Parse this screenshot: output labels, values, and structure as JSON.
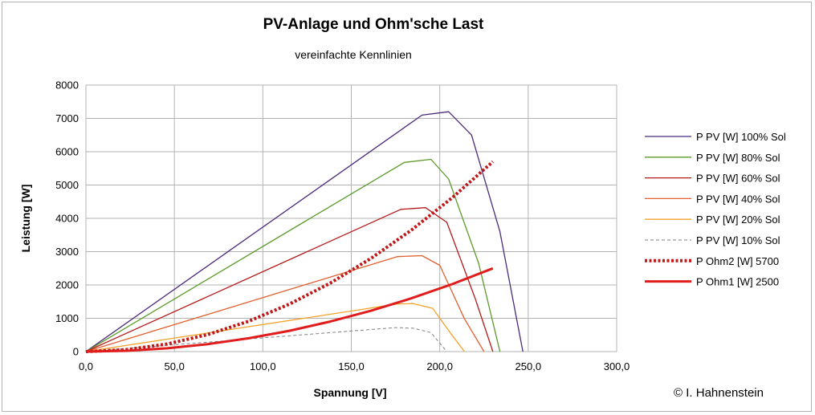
{
  "chart_data": {
    "type": "line",
    "title": "PV-Anlage  und  Ohm'sche Last",
    "subtitle": "vereinfachte Kennlinien",
    "xlabel": "Spannung [V]",
    "ylabel": "Leistung [W]",
    "xlim": [
      0,
      300
    ],
    "ylim": [
      0,
      8000
    ],
    "x_ticks": [
      "0,0",
      "50,0",
      "100,0",
      "150,0",
      "200,0",
      "250,0",
      "300,0"
    ],
    "y_ticks": [
      "0",
      "1000",
      "2000",
      "3000",
      "4000",
      "5000",
      "6000",
      "7000",
      "8000"
    ],
    "grid": true,
    "legend_position": "right",
    "copyright": "©  I. Hahnenstein",
    "series": [
      {
        "name": "P PV [W] 100% Sol",
        "color": "#4b2a7a",
        "style": "solid",
        "width": 1.3,
        "x": [
          0,
          190,
          205,
          218,
          234,
          247
        ],
        "y": [
          0,
          7100,
          7200,
          6500,
          3600,
          0
        ]
      },
      {
        "name": "P PV [W] 80% Sol",
        "color": "#5a9a2a",
        "style": "solid",
        "width": 1.3,
        "x": [
          0,
          180,
          195,
          205,
          222,
          234
        ],
        "y": [
          0,
          5680,
          5770,
          5180,
          2650,
          0
        ]
      },
      {
        "name": "P PV [W] 60% Sol",
        "color": "#b51a1a",
        "style": "solid",
        "width": 1.3,
        "x": [
          0,
          178,
          192,
          204,
          220,
          230
        ],
        "y": [
          0,
          4270,
          4320,
          3880,
          1600,
          0
        ]
      },
      {
        "name": "P PV [W] 40% Sol",
        "color": "#e06030",
        "style": "solid",
        "width": 1.3,
        "x": [
          0,
          176,
          190,
          200,
          214,
          225
        ],
        "y": [
          0,
          2850,
          2880,
          2590,
          980,
          0
        ]
      },
      {
        "name": "P PV [W] 20% Sol",
        "color": "#f2a22c",
        "style": "solid",
        "width": 1.3,
        "x": [
          0,
          176,
          185,
          196,
          206,
          214
        ],
        "y": [
          0,
          1430,
          1440,
          1300,
          560,
          0
        ]
      },
      {
        "name": "P PV [W] 10% Sol",
        "color": "#808080",
        "style": "dashed",
        "width": 1,
        "x": [
          0,
          175,
          185,
          195,
          204
        ],
        "y": [
          0,
          720,
          700,
          570,
          0
        ]
      },
      {
        "name": "P Ohm2 [W] 5700",
        "color": "#c01818",
        "style": "dotted",
        "width": 4,
        "x": [
          0,
          23,
          46,
          69,
          92,
          115,
          138,
          161,
          184,
          207,
          230
        ],
        "y": [
          0,
          57,
          228,
          513,
          912,
          1425,
          2052,
          2793,
          3648,
          4617,
          5700
        ]
      },
      {
        "name": "P Ohm1 [W] 2500",
        "color": "#e01c1c",
        "style": "solid",
        "width": 3,
        "x": [
          0,
          23,
          46,
          69,
          92,
          115,
          138,
          161,
          184,
          207,
          230
        ],
        "y": [
          0,
          25,
          100,
          225,
          400,
          625,
          900,
          1225,
          1600,
          2025,
          2500
        ]
      }
    ]
  }
}
